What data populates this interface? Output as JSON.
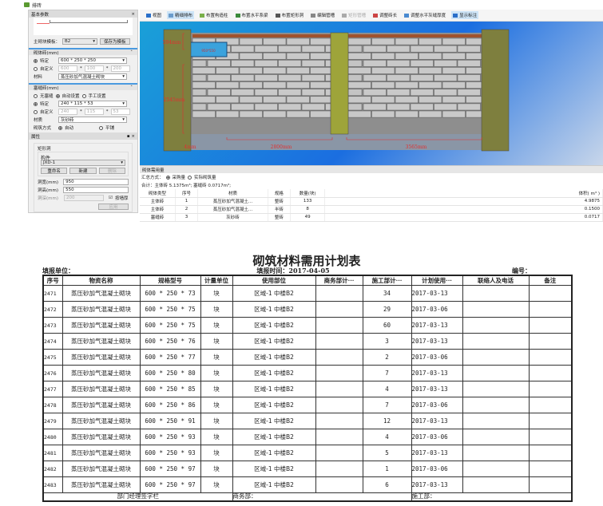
{
  "app": {
    "title": "排砖"
  },
  "left": {
    "basic_title": "基本参数",
    "template_label": "主砌块模板：",
    "template_value": "B2",
    "save_template": "保存为模板",
    "block_section": "砌体砖(mm)",
    "block_fixed_label": "特定",
    "block_fixed_value": "600 * 250 * 250",
    "block_custom_label": "自定义",
    "block_custom": [
      "600",
      "100",
      "200"
    ],
    "block_material_label": "材料",
    "block_material": "蒸压砂加气混凝土砌块",
    "filler_section": "塞缝砖(mm)",
    "filler_modes": [
      "无塞缝",
      "自动设置",
      "手工设置"
    ],
    "filler_fixed_label": "特定",
    "filler_fixed_value": "240 * 115 * 53",
    "filler_custom_label": "自定义",
    "filler_custom": [
      "240",
      "115",
      "53"
    ],
    "filler_material_label": "材质",
    "filler_material": "灰砂砖",
    "laying_label": "砌筑方式",
    "laying_options": [
      "自动",
      "平铺"
    ],
    "props_title": "属性",
    "group_label": "矩形洞",
    "component_label": "构件",
    "component_value": "JXD-1",
    "rename": "重命名",
    "new": "新建",
    "delete": "删除",
    "width_label": "洞宽(mm)",
    "width_value": "950",
    "height_label": "洞高(mm)",
    "height_value": "550",
    "depth_label": "洞深(mm)",
    "depth_value": "200",
    "by_wall": "按墙厚",
    "apply": "应用"
  },
  "toolbar": [
    "视图",
    "精细排布",
    "布置构造柱",
    "布置水平系梁",
    "布置矩形洞",
    "编辑管槽",
    "矩形管槽",
    "调整砖长",
    "调整水平灰缝厚度",
    "显示标注"
  ],
  "drawing": {
    "dim_top": "594mm",
    "dim_mid": "2545mm",
    "dim_left": "4mm",
    "dim_span1": "2800mm",
    "dim_span2": "3565mm",
    "opening": "950*550"
  },
  "quantity": {
    "title": "砌体需用量",
    "mode_label": "汇总方式：",
    "modes": [
      "采购量",
      "实际砌筑量"
    ],
    "total": "合计：主体砖 5.1375m³; 塞缝砖 0.0717m³;",
    "headers": [
      "砌体类型",
      "序号",
      "材质",
      "规格",
      "数量(块)",
      "体积( m³ )"
    ],
    "rows": [
      [
        "主体砖",
        "1",
        "蒸压砂加气混凝土...",
        "整砖",
        "133",
        "4.9875"
      ],
      [
        "主体砖",
        "2",
        "蒸压砂加气混凝土...",
        "半砖",
        "8",
        "0.1500"
      ],
      [
        "塞缝砖",
        "3",
        "灰砂砖",
        "整砖",
        "49",
        "0.0717"
      ]
    ]
  },
  "report": {
    "title": "砌筑材料需用计划表",
    "unit_label": "填报单位：",
    "date_label": "填报时间：2017-04-05",
    "code_label": "编号：",
    "headers": [
      "序号",
      "物资名称",
      "规格型号",
      "计量单位",
      "使用部位",
      "商务部计···",
      "施工部计···",
      "计划使用···",
      "联络人及电话",
      "备注"
    ],
    "rows": [
      [
        "2471",
        "蒸压砂加气混凝土砌块",
        "600 * 250 * 73",
        "块",
        "区域-1 中楼B2",
        "",
        "34",
        "2017-03-13",
        "",
        ""
      ],
      [
        "2472",
        "蒸压砂加气混凝土砌块",
        "600 * 250 * 75",
        "块",
        "区域-1 中楼B2",
        "",
        "29",
        "2017-03-06",
        "",
        ""
      ],
      [
        "2473",
        "蒸压砂加气混凝土砌块",
        "600 * 250 * 75",
        "块",
        "区域-1 中楼B2",
        "",
        "60",
        "2017-03-13",
        "",
        ""
      ],
      [
        "2474",
        "蒸压砂加气混凝土砌块",
        "600 * 250 * 76",
        "块",
        "区域-1 中楼B2",
        "",
        "3",
        "2017-03-13",
        "",
        ""
      ],
      [
        "2475",
        "蒸压砂加气混凝土砌块",
        "600 * 250 * 77",
        "块",
        "区域-1 中楼B2",
        "",
        "2",
        "2017-03-06",
        "",
        ""
      ],
      [
        "2476",
        "蒸压砂加气混凝土砌块",
        "600 * 250 * 80",
        "块",
        "区域-1 中楼B2",
        "",
        "7",
        "2017-03-13",
        "",
        ""
      ],
      [
        "2477",
        "蒸压砂加气混凝土砌块",
        "600 * 250 * 85",
        "块",
        "区域-1 中楼B2",
        "",
        "4",
        "2017-03-13",
        "",
        ""
      ],
      [
        "2478",
        "蒸压砂加气混凝土砌块",
        "600 * 250 * 86",
        "块",
        "区域-1 中楼B2",
        "",
        "7",
        "2017-03-06",
        "",
        ""
      ],
      [
        "2479",
        "蒸压砂加气混凝土砌块",
        "600 * 250 * 91",
        "块",
        "区域-1 中楼B2",
        "",
        "12",
        "2017-03-13",
        "",
        ""
      ],
      [
        "2480",
        "蒸压砂加气混凝土砌块",
        "600 * 250 * 93",
        "块",
        "区域-1 中楼B2",
        "",
        "4",
        "2017-03-06",
        "",
        ""
      ],
      [
        "2481",
        "蒸压砂加气混凝土砌块",
        "600 * 250 * 93",
        "块",
        "区域-1 中楼B2",
        "",
        "5",
        "2017-03-13",
        "",
        ""
      ],
      [
        "2482",
        "蒸压砂加气混凝土砌块",
        "600 * 250 * 97",
        "块",
        "区域-1 中楼B2",
        "",
        "1",
        "2017-03-06",
        "",
        ""
      ],
      [
        "2483",
        "蒸压砂加气混凝土砌块",
        "600 * 250 * 97",
        "块",
        "区域-1 中楼B2",
        "",
        "6",
        "2017-03-13",
        "",
        ""
      ]
    ],
    "footer": [
      "部门经理签字栏",
      "商务部：",
      "施工部："
    ]
  }
}
